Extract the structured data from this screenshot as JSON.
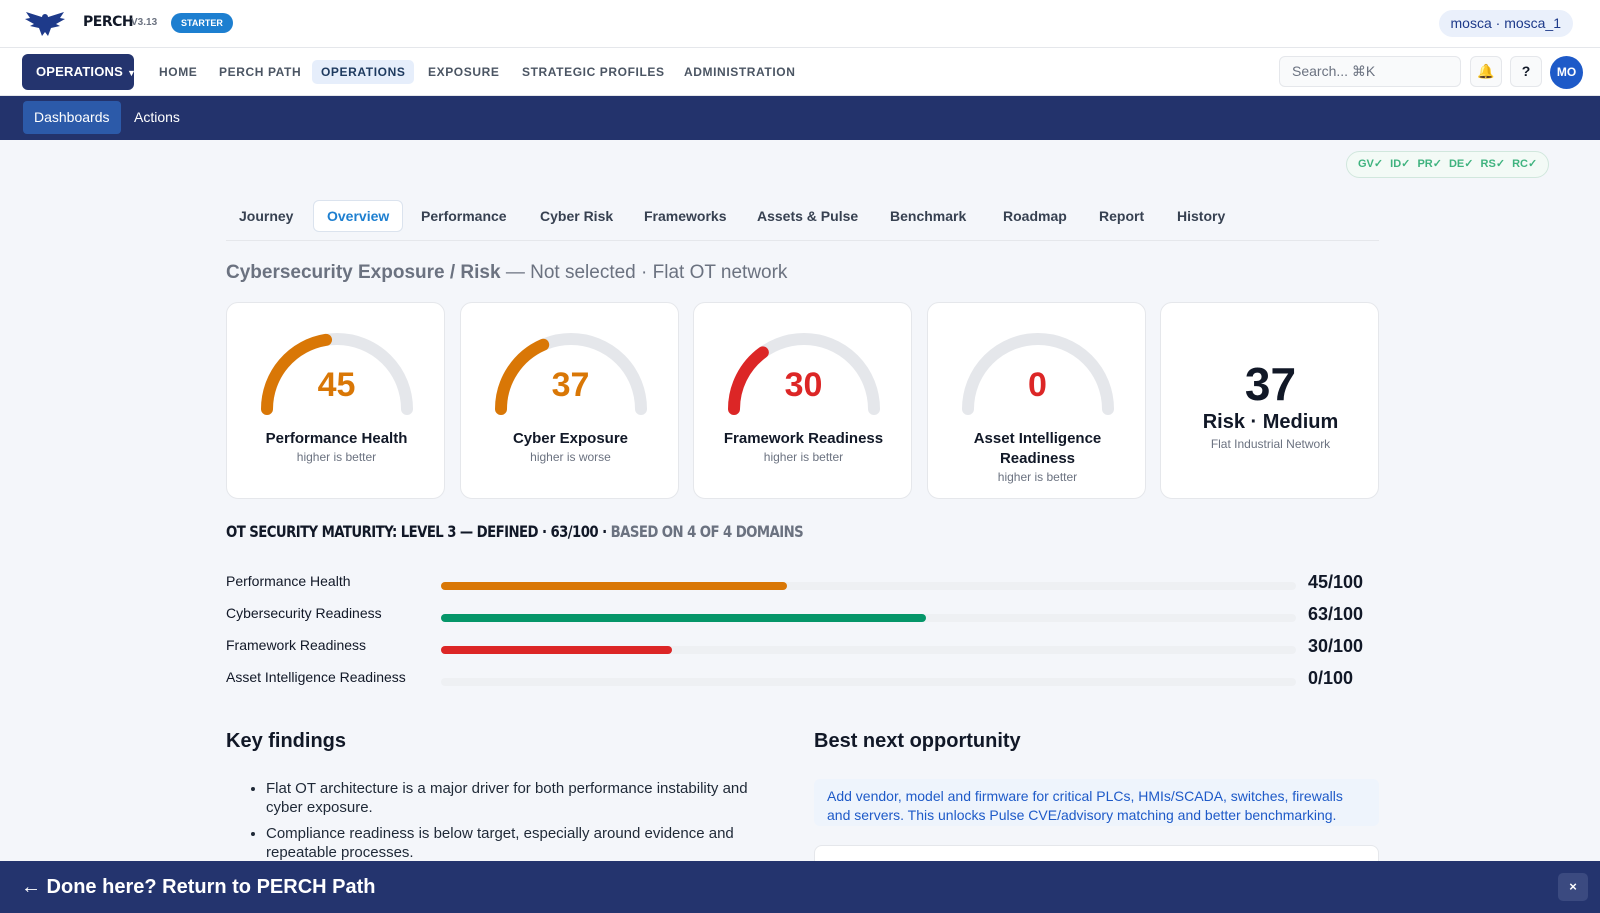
{
  "app": {
    "brand": "PERCH",
    "version": "V3.13",
    "plan_badge": "STARTER",
    "user": "mosca · mosca_1",
    "logo_icon": "eagle-logo"
  },
  "nav": {
    "module_button": "OPERATIONS",
    "items": [
      "HOME",
      "PERCH PATH",
      "OPERATIONS",
      "EXPOSURE",
      "STRATEGIC PROFILES",
      "ADMINISTRATION"
    ],
    "active": "OPERATIONS",
    "search_placeholder": "Search... ⌘K",
    "bell_icon": "🔔",
    "help_icon": "?",
    "avatar": "MO"
  },
  "subnav": {
    "items": [
      "Dashboards",
      "Actions"
    ],
    "active": "Dashboards"
  },
  "csf_status": "GV✓ ID✓ PR✓ DE✓ RS✓ RC✓",
  "tabs": {
    "items": [
      "Journey",
      "Overview",
      "Performance",
      "Cyber Risk",
      "Frameworks",
      "Assets & Pulse",
      "Benchmark",
      "Roadmap",
      "Report",
      "History"
    ],
    "active": "Overview"
  },
  "section": {
    "title": "Cybersecurity Exposure / Risk",
    "subtitle": "— Not selected · Flat OT network"
  },
  "kpis": [
    {
      "value": 45,
      "title": "Performance Health",
      "sub": "higher is better",
      "color": "#d97706"
    },
    {
      "value": 37,
      "title": "Cyber Exposure",
      "sub": "higher is worse",
      "color": "#d97706"
    },
    {
      "value": 30,
      "title": "Framework Readiness",
      "sub": "higher is better",
      "color": "#dc2626"
    },
    {
      "value": 0,
      "title": "Asset Intelligence Readiness",
      "sub": "higher is better",
      "color": "#dc2626"
    }
  ],
  "risk": {
    "value": "37",
    "label": "Risk · Medium",
    "sub": "Flat Industrial Network"
  },
  "maturity": {
    "heading": "OT SECURITY MATURITY: LEVEL 3 — DEFINED · 63/100 ·",
    "basis": "BASED ON 4 OF 4 DOMAINS",
    "bars": [
      {
        "label": "Performance Health",
        "value": 45,
        "display": "45/100",
        "color": "#d97706"
      },
      {
        "label": "Cybersecurity Readiness",
        "value": 63,
        "display": "63/100",
        "color": "#059669"
      },
      {
        "label": "Framework Readiness",
        "value": 30,
        "display": "30/100",
        "color": "#dc2626"
      },
      {
        "label": "Asset Intelligence Readiness",
        "value": 0,
        "display": "0/100",
        "color": "#dc2626"
      }
    ]
  },
  "findings": {
    "title": "Key findings",
    "items": [
      "Flat OT architecture is a major driver for both performance instability and cyber exposure.",
      "Compliance readiness is below target, especially around evidence and repeatable processes."
    ]
  },
  "opportunity": {
    "title": "Best next opportunity",
    "text": "Add vendor, model and firmware for critical PLCs, HMIs/SCADA, switches, firewalls and servers. This unlocks Pulse CVE/advisory matching and better benchmarking."
  },
  "banner": {
    "text": "← Done here? Return to PERCH Path",
    "close": "×"
  }
}
